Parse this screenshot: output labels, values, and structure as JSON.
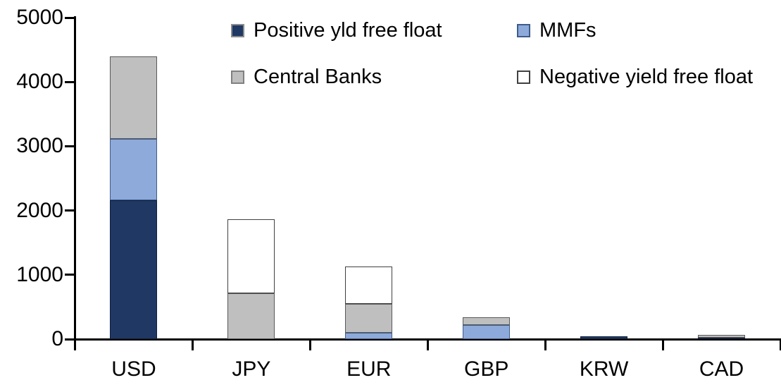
{
  "chart_data": {
    "type": "bar",
    "stacked": true,
    "title": "",
    "xlabel": "",
    "ylabel": "",
    "categories": [
      "USD",
      "JPY",
      "EUR",
      "GBP",
      "KRW",
      "CAD"
    ],
    "series": [
      {
        "name": "Positive yld free float",
        "color": "#1F3864",
        "border": "#11203a",
        "values": [
          2160,
          0,
          0,
          0,
          40,
          25
        ]
      },
      {
        "name": "MMFs",
        "color": "#8EAADB",
        "border": "#3e5c8a",
        "values": [
          950,
          0,
          100,
          220,
          0,
          0
        ]
      },
      {
        "name": "Central Banks",
        "color": "#BFBFBF",
        "border": "#595959",
        "values": [
          1290,
          710,
          450,
          120,
          0,
          40
        ]
      },
      {
        "name": "Negative yield free float",
        "color": "#FFFFFF",
        "border": "#404040",
        "values": [
          0,
          1150,
          580,
          0,
          0,
          0
        ]
      }
    ],
    "totals": {
      "USD": 4400,
      "JPY": 1860,
      "EUR": 1130,
      "GBP": 340,
      "KRW": 40,
      "CAD": 65
    },
    "ylim": [
      0,
      5000
    ],
    "yticks": [
      0,
      1000,
      2000,
      3000,
      4000,
      5000
    ],
    "ytick_labels": [
      "0",
      "1000",
      "2000",
      "3000",
      "4000",
      "5000"
    ],
    "grid": false,
    "legend_position": "top",
    "axis_color": "#000000",
    "background_color": "#FFFFFF"
  },
  "legend": {
    "items": [
      {
        "label": "Positive yld free float",
        "color": "#1F3864"
      },
      {
        "label": "MMFs",
        "color": "#8EAADB"
      },
      {
        "label": "Central Banks",
        "color": "#BFBFBF"
      },
      {
        "label": "Negative yield free float",
        "color": "#FFFFFF"
      }
    ]
  }
}
